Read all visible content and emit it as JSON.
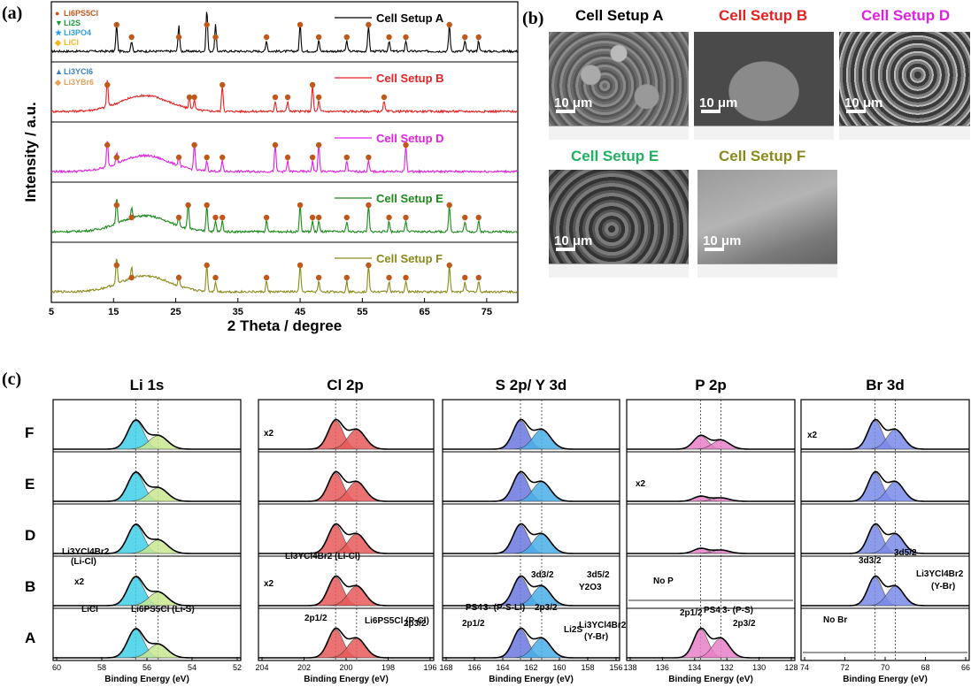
{
  "panel_a": {
    "letter": "(a)",
    "ylabel": "Intensity / a.u.",
    "xlabel": "2 Theta / degree",
    "xticks": [
      "5",
      "15",
      "25",
      "35",
      "45",
      "55",
      "65",
      "75"
    ],
    "legend_top": [
      {
        "symbol": "●",
        "color": "#c0581b",
        "label": "Li6PS5Cl"
      },
      {
        "symbol": "▼",
        "color": "#1a9a3a",
        "label": "Li2S"
      },
      {
        "symbol": "★",
        "color": "#2f9fe0",
        "label": "Li3PO4"
      },
      {
        "symbol": "◆",
        "color": "#f2b81c",
        "label": "LiCl"
      }
    ],
    "legend_b": [
      {
        "symbol": "▲",
        "color": "#3a7fc0",
        "label": "Li3YCl6"
      },
      {
        "symbol": "◆",
        "color": "#e8a060",
        "label": "Li3YBr6"
      }
    ],
    "traces": [
      {
        "label": "Cell Setup A",
        "color": "#000000"
      },
      {
        "label": "Cell Setup B",
        "color": "#e82020"
      },
      {
        "label": "Cell Setup D",
        "color": "#e020e0"
      },
      {
        "label": "Cell Setup E",
        "color": "#1a8a1a"
      },
      {
        "label": "Cell Setup F",
        "color": "#8a8a1a"
      }
    ]
  },
  "panel_b": {
    "letter": "(b)",
    "images": [
      {
        "title": "Cell Setup A",
        "color": "#000000",
        "scale": "10 μm"
      },
      {
        "title": "Cell Setup B",
        "color": "#e82020",
        "scale": "10 μm"
      },
      {
        "title": "Cell Setup D",
        "color": "#e020e0",
        "scale": "10 μm"
      },
      {
        "title": "Cell Setup E",
        "color": "#20b060",
        "scale": "10 μm"
      },
      {
        "title": "Cell Setup F",
        "color": "#8a8a1a",
        "scale": "10 μm"
      }
    ]
  },
  "panel_c": {
    "letter": "(c)",
    "row_labels": [
      "F",
      "E",
      "D",
      "B",
      "A"
    ],
    "xlabel": "Binding Energy (eV)",
    "subplots": [
      {
        "title": "Li 1s",
        "xticks": [
          "60",
          "58",
          "56",
          "54",
          "52"
        ],
        "annotations": [
          "Li3YCl4Br2",
          "(Li-Cl)",
          "x2",
          "LiCl",
          "Li6PS5Cl (Li-S)"
        ]
      },
      {
        "title": "Cl 2p",
        "xticks": [
          "204",
          "202",
          "200",
          "198",
          "196"
        ],
        "annotations": [
          "x2",
          "Li3YCl4Br2 (Li-Cl)",
          "x2",
          "Li6PS5Cl (P-Cl)",
          "2p1/2",
          "2p3/2"
        ]
      },
      {
        "title": "S 2p/ Y 3d",
        "xticks": [
          "168",
          "166",
          "164",
          "162",
          "160",
          "158",
          "156"
        ],
        "annotations": [
          "3d3/2",
          "3d5/2",
          "Y2O3",
          "PS4",
          "3- (P-S-Li)",
          "2p3/2",
          "2p1/2",
          "Li2S",
          "Li3YCl4Br2",
          "(Y-Br)"
        ]
      },
      {
        "title": "P 2p",
        "xticks": [
          "138",
          "136",
          "134",
          "132",
          "130",
          "128"
        ],
        "annotations": [
          "x2",
          "No P",
          "PS4",
          "3- (P-S)",
          "2p1/2",
          "2p3/2"
        ]
      },
      {
        "title": "Br 3d",
        "xticks": [
          "74",
          "72",
          "70",
          "68",
          "66"
        ],
        "annotations": [
          "x2",
          "3d3/2",
          "3d5/2",
          "Li3YCl4Br2",
          "(Y-Br)",
          "No Br"
        ]
      }
    ]
  },
  "colors": {
    "li6": "#c0581b",
    "li3ycl6": "#3a7fc0",
    "li3ybr6": "#e8a060",
    "licl": "#f2b81c",
    "li2s": "#1a9a3a",
    "cyan": "#40d0e8",
    "green_fill": "#c8e890",
    "red_fill": "#e85a5a",
    "blue_fill": "#6a78e0",
    "pink_fill": "#e880c8"
  }
}
